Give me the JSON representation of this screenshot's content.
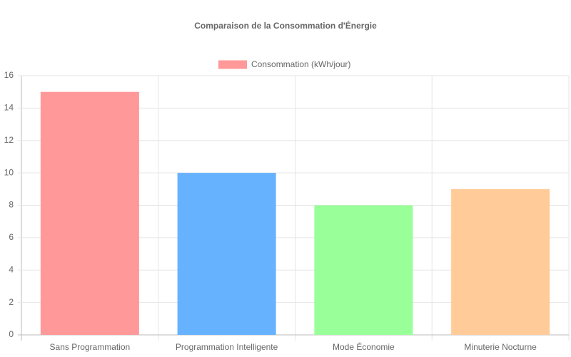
{
  "chart_data": {
    "type": "bar",
    "title": "Comparaison de la Consommation d'Énergie",
    "categories": [
      "Sans Programmation",
      "Programmation Intelligente",
      "Mode Économie",
      "Minuterie Nocturne"
    ],
    "series": [
      {
        "name": "Consommation (kWh/jour)",
        "colors": [
          "#ff9999",
          "#66b2ff",
          "#99ff99",
          "#ffcc99"
        ],
        "values": [
          15,
          10,
          8,
          9
        ]
      }
    ],
    "ylim": [
      0,
      16
    ],
    "yticks": [
      0,
      2,
      4,
      6,
      8,
      10,
      12,
      14,
      16
    ],
    "grid": true,
    "legend": "top"
  }
}
